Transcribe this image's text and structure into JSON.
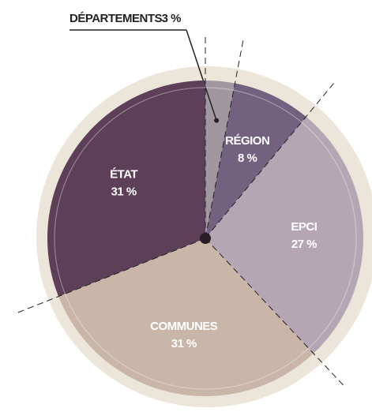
{
  "chart_data": {
    "type": "pie",
    "categories": [
      "DÉPARTEMENTS",
      "RÉGION",
      "EPCI",
      "COMMUNES",
      "ÉTAT"
    ],
    "values": [
      3,
      8,
      27,
      31,
      31
    ],
    "value_labels": [
      "3 %",
      "8 %",
      "27 %",
      "31 %",
      "31 %"
    ],
    "colors": [
      "#a0979f",
      "#72627f",
      "#b4a7b3",
      "#c9b6a8",
      "#5d4058"
    ]
  }
}
